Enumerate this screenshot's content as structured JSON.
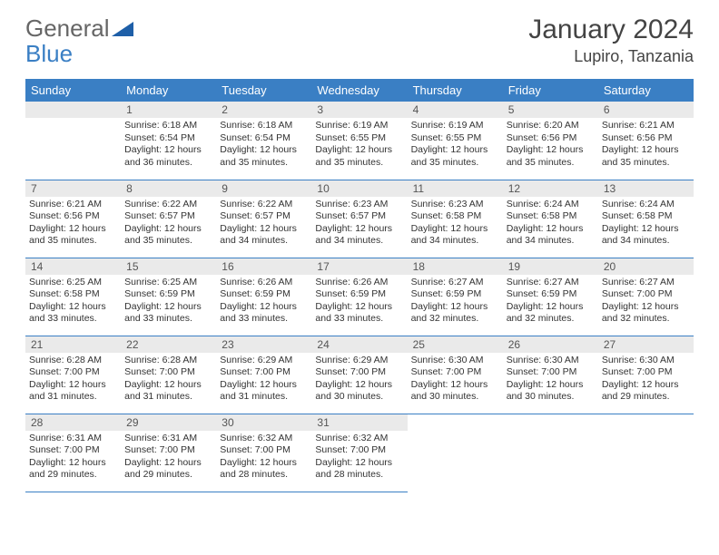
{
  "brand": {
    "part1": "General",
    "part2": "Blue"
  },
  "title": "January 2024",
  "location": "Lupiro, Tanzania",
  "colors": {
    "header_bg": "#3a7fc4",
    "header_text": "#ffffff",
    "daynum_bg": "#eaeaea",
    "border": "#3a7fc4",
    "text": "#333333"
  },
  "weekdays": [
    "Sunday",
    "Monday",
    "Tuesday",
    "Wednesday",
    "Thursday",
    "Friday",
    "Saturday"
  ],
  "first_weekday_index": 1,
  "days": [
    {
      "n": 1,
      "sunrise": "6:18 AM",
      "sunset": "6:54 PM",
      "dl_h": 12,
      "dl_m": 36
    },
    {
      "n": 2,
      "sunrise": "6:18 AM",
      "sunset": "6:54 PM",
      "dl_h": 12,
      "dl_m": 35
    },
    {
      "n": 3,
      "sunrise": "6:19 AM",
      "sunset": "6:55 PM",
      "dl_h": 12,
      "dl_m": 35
    },
    {
      "n": 4,
      "sunrise": "6:19 AM",
      "sunset": "6:55 PM",
      "dl_h": 12,
      "dl_m": 35
    },
    {
      "n": 5,
      "sunrise": "6:20 AM",
      "sunset": "6:56 PM",
      "dl_h": 12,
      "dl_m": 35
    },
    {
      "n": 6,
      "sunrise": "6:21 AM",
      "sunset": "6:56 PM",
      "dl_h": 12,
      "dl_m": 35
    },
    {
      "n": 7,
      "sunrise": "6:21 AM",
      "sunset": "6:56 PM",
      "dl_h": 12,
      "dl_m": 35
    },
    {
      "n": 8,
      "sunrise": "6:22 AM",
      "sunset": "6:57 PM",
      "dl_h": 12,
      "dl_m": 35
    },
    {
      "n": 9,
      "sunrise": "6:22 AM",
      "sunset": "6:57 PM",
      "dl_h": 12,
      "dl_m": 34
    },
    {
      "n": 10,
      "sunrise": "6:23 AM",
      "sunset": "6:57 PM",
      "dl_h": 12,
      "dl_m": 34
    },
    {
      "n": 11,
      "sunrise": "6:23 AM",
      "sunset": "6:58 PM",
      "dl_h": 12,
      "dl_m": 34
    },
    {
      "n": 12,
      "sunrise": "6:24 AM",
      "sunset": "6:58 PM",
      "dl_h": 12,
      "dl_m": 34
    },
    {
      "n": 13,
      "sunrise": "6:24 AM",
      "sunset": "6:58 PM",
      "dl_h": 12,
      "dl_m": 34
    },
    {
      "n": 14,
      "sunrise": "6:25 AM",
      "sunset": "6:58 PM",
      "dl_h": 12,
      "dl_m": 33
    },
    {
      "n": 15,
      "sunrise": "6:25 AM",
      "sunset": "6:59 PM",
      "dl_h": 12,
      "dl_m": 33
    },
    {
      "n": 16,
      "sunrise": "6:26 AM",
      "sunset": "6:59 PM",
      "dl_h": 12,
      "dl_m": 33
    },
    {
      "n": 17,
      "sunrise": "6:26 AM",
      "sunset": "6:59 PM",
      "dl_h": 12,
      "dl_m": 33
    },
    {
      "n": 18,
      "sunrise": "6:27 AM",
      "sunset": "6:59 PM",
      "dl_h": 12,
      "dl_m": 32
    },
    {
      "n": 19,
      "sunrise": "6:27 AM",
      "sunset": "6:59 PM",
      "dl_h": 12,
      "dl_m": 32
    },
    {
      "n": 20,
      "sunrise": "6:27 AM",
      "sunset": "7:00 PM",
      "dl_h": 12,
      "dl_m": 32
    },
    {
      "n": 21,
      "sunrise": "6:28 AM",
      "sunset": "7:00 PM",
      "dl_h": 12,
      "dl_m": 31
    },
    {
      "n": 22,
      "sunrise": "6:28 AM",
      "sunset": "7:00 PM",
      "dl_h": 12,
      "dl_m": 31
    },
    {
      "n": 23,
      "sunrise": "6:29 AM",
      "sunset": "7:00 PM",
      "dl_h": 12,
      "dl_m": 31
    },
    {
      "n": 24,
      "sunrise": "6:29 AM",
      "sunset": "7:00 PM",
      "dl_h": 12,
      "dl_m": 30
    },
    {
      "n": 25,
      "sunrise": "6:30 AM",
      "sunset": "7:00 PM",
      "dl_h": 12,
      "dl_m": 30
    },
    {
      "n": 26,
      "sunrise": "6:30 AM",
      "sunset": "7:00 PM",
      "dl_h": 12,
      "dl_m": 30
    },
    {
      "n": 27,
      "sunrise": "6:30 AM",
      "sunset": "7:00 PM",
      "dl_h": 12,
      "dl_m": 29
    },
    {
      "n": 28,
      "sunrise": "6:31 AM",
      "sunset": "7:00 PM",
      "dl_h": 12,
      "dl_m": 29
    },
    {
      "n": 29,
      "sunrise": "6:31 AM",
      "sunset": "7:00 PM",
      "dl_h": 12,
      "dl_m": 29
    },
    {
      "n": 30,
      "sunrise": "6:32 AM",
      "sunset": "7:00 PM",
      "dl_h": 12,
      "dl_m": 28
    },
    {
      "n": 31,
      "sunrise": "6:32 AM",
      "sunset": "7:00 PM",
      "dl_h": 12,
      "dl_m": 28
    }
  ],
  "labels": {
    "sunrise": "Sunrise:",
    "sunset": "Sunset:",
    "daylight": "Daylight:",
    "hours": "hours",
    "and": "and",
    "minutes": "minutes."
  }
}
